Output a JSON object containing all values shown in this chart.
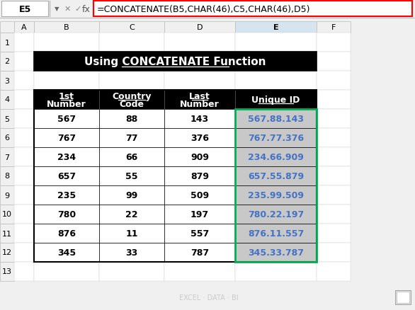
{
  "formula_bar_text": "=CONCATENATE(B5,CHAR(46),C5,CHAR(46),D5)",
  "cell_ref": "E5",
  "title": "Using CONCATENATE Function",
  "col_headers": [
    "1st\nNumber",
    "Country\nCode",
    "Last\nNumber",
    "Unique ID"
  ],
  "data_rows": [
    [
      "567",
      "88",
      "143",
      "567.88.143"
    ],
    [
      "767",
      "77",
      "376",
      "767.77.376"
    ],
    [
      "234",
      "66",
      "909",
      "234.66.909"
    ],
    [
      "657",
      "55",
      "879",
      "657.55.879"
    ],
    [
      "235",
      "99",
      "509",
      "235.99.509"
    ],
    [
      "780",
      "22",
      "197",
      "780.22.197"
    ],
    [
      "876",
      "11",
      "557",
      "876.11.557"
    ],
    [
      "345",
      "33",
      "787",
      "345.33.787"
    ]
  ],
  "col_letters": [
    "A",
    "B",
    "C",
    "D",
    "E",
    "F"
  ],
  "header_bg": "#000000",
  "header_fg": "#ffffff",
  "title_bg": "#000000",
  "title_fg": "#ffffff",
  "formula_border_color": "#ff0000",
  "active_col_header_bg": "#d6e4f0",
  "green_border": "#00b050",
  "excel_bg": "#f0f0f0",
  "watermark_text": "EXCEL · DATA · BI",
  "watermark_color": "#bbbbbb",
  "unique_id_bg": "#c8c8c8",
  "unique_id_text": "#4472c4"
}
